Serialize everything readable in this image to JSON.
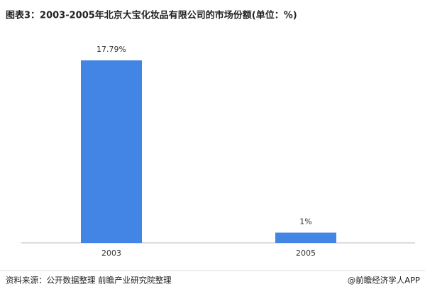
{
  "chart_data": {
    "type": "bar",
    "title": "图表3：2003-2005年北京大宝化妆品有限公司的市场份额(单位：%)",
    "categories": [
      "2003",
      "2005"
    ],
    "values": [
      17.79,
      1
    ],
    "value_labels": [
      "17.79%",
      "1%"
    ],
    "color": "#4285e4",
    "source": "资料来源：公开数据整理 前瞻产业研究院整理",
    "credit": "@前瞻经济学人APP"
  }
}
